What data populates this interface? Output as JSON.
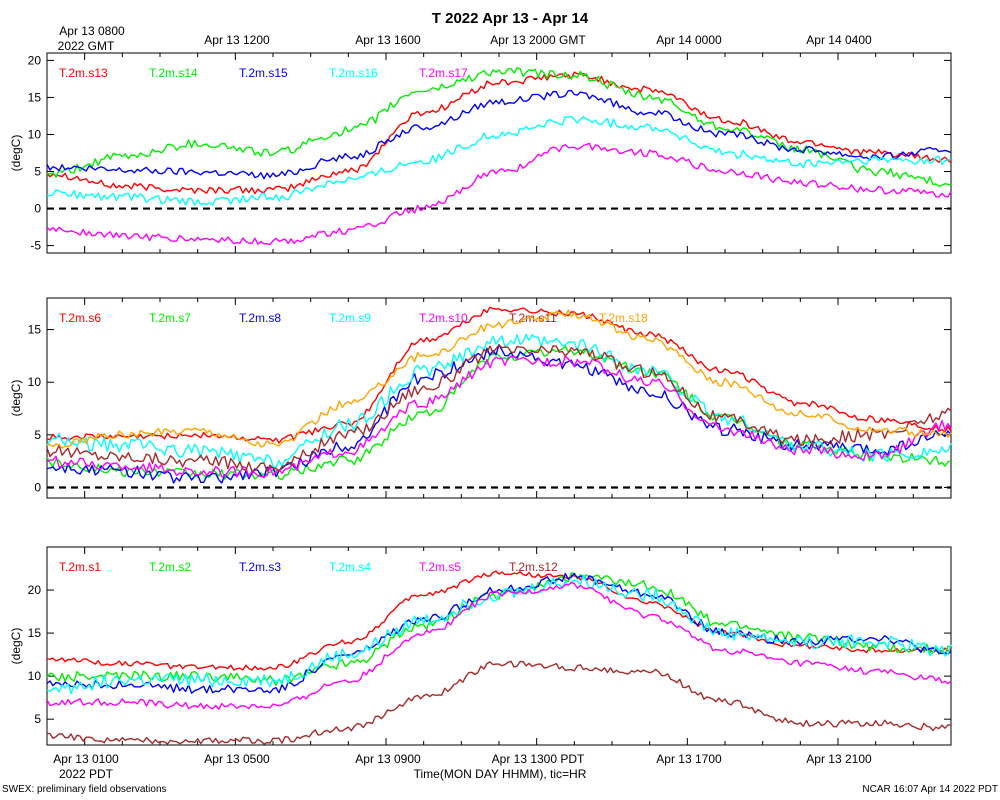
{
  "title": "T 2022 Apr 13 - Apr 14",
  "top_axis": {
    "tick_labels": [
      "Apr 13 0800",
      "Apr 13 1200",
      "Apr 13 1600",
      "Apr 13 2000 GMT",
      "Apr 14 0000",
      "Apr 14 0400"
    ],
    "sub_label": "2022 GMT"
  },
  "bottom_axis": {
    "tick_labels": [
      "Apr 13 0100",
      "Apr 13 0500",
      "Apr 13 0900",
      "Apr 13 1300 PDT",
      "Apr 13 1700",
      "Apr 13 2100"
    ],
    "sub_label": "2022 PDT",
    "xlabel": "Time(MON DAY HHMM), tic=HR"
  },
  "footer": {
    "left": "SWEX: preliminary field observations",
    "right": "NCAR 16:07 Apr 14 2022 PDT"
  },
  "chart_data": [
    {
      "type": "line",
      "ylabel": "(degC)",
      "ylim": [
        -6,
        21
      ],
      "yticks": [
        -5,
        0,
        5,
        10,
        15,
        20
      ],
      "zero_line": true,
      "x_hours": [
        0,
        2,
        4,
        6,
        8,
        10,
        12,
        14,
        16,
        18,
        20,
        22,
        24
      ],
      "series": [
        {
          "name": "T.2m.s13",
          "color": "#ff0000",
          "values": [
            4.8,
            3.0,
            2.5,
            2.5,
            5.0,
            13.0,
            17.0,
            18.0,
            16.0,
            12.0,
            9.0,
            7.5,
            6.5
          ],
          "noise": 0.5
        },
        {
          "name": "T.2m.s14",
          "color": "#00ee00",
          "values": [
            4.5,
            7.0,
            8.8,
            7.5,
            10.5,
            16.0,
            18.5,
            18.0,
            15.0,
            11.0,
            8.0,
            5.0,
            3.5
          ],
          "noise": 0.6
        },
        {
          "name": "T.2m.s15",
          "color": "#0000ff",
          "values": [
            5.5,
            5.2,
            5.0,
            4.5,
            7.0,
            11.0,
            14.5,
            15.5,
            13.0,
            10.0,
            8.0,
            7.0,
            8.0
          ],
          "noise": 0.5
        },
        {
          "name": "T.2m.s16",
          "color": "#00ffff",
          "values": [
            2.0,
            1.5,
            0.8,
            1.5,
            4.0,
            6.5,
            10.0,
            12.0,
            11.0,
            7.5,
            6.0,
            6.5,
            6.5
          ],
          "noise": 0.6
        },
        {
          "name": "T.2m.s17",
          "color": "#ff00ff",
          "values": [
            -2.8,
            -3.7,
            -4.2,
            -4.5,
            -3.0,
            0.0,
            5.0,
            8.5,
            7.5,
            5.0,
            3.5,
            2.5,
            2.0
          ],
          "noise": 0.5
        }
      ]
    },
    {
      "type": "line",
      "ylabel": "(degC)",
      "ylim": [
        -1,
        18
      ],
      "yticks": [
        0,
        5,
        10,
        15
      ],
      "zero_line": true,
      "x_hours": [
        0,
        2,
        4,
        6,
        8,
        10,
        12,
        14,
        16,
        18,
        20,
        22,
        24
      ],
      "series": [
        {
          "name": "T.2m.s6",
          "color": "#ff0000",
          "values": [
            4.8,
            4.8,
            5.0,
            4.5,
            6.0,
            14.0,
            17.0,
            16.5,
            14.5,
            11.0,
            8.0,
            6.5,
            5.5
          ],
          "noise": 0.3
        },
        {
          "name": "T.2m.s7",
          "color": "#00ee00",
          "values": [
            2.5,
            1.5,
            1.3,
            1.2,
            2.5,
            7.0,
            12.5,
            13.0,
            11.0,
            6.5,
            4.0,
            3.0,
            2.5
          ],
          "noise": 0.5
        },
        {
          "name": "T.2m.s8",
          "color": "#0000ff",
          "values": [
            2.0,
            1.5,
            0.8,
            1.5,
            4.0,
            10.5,
            13.0,
            11.5,
            9.0,
            5.5,
            4.0,
            3.5,
            5.0
          ],
          "noise": 0.6
        },
        {
          "name": "T.2m.s9",
          "color": "#00ffff",
          "values": [
            4.5,
            4.0,
            3.5,
            2.5,
            6.0,
            11.0,
            14.0,
            13.5,
            11.0,
            6.5,
            4.0,
            3.0,
            3.5
          ],
          "noise": 0.7
        },
        {
          "name": "T.2m.s10",
          "color": "#ff00ff",
          "values": [
            2.5,
            2.0,
            1.5,
            1.5,
            3.5,
            8.0,
            12.0,
            12.0,
            10.0,
            5.5,
            3.5,
            3.0,
            6.0
          ],
          "noise": 0.5
        },
        {
          "name": "T.2m.s11",
          "color": "#a52a2a",
          "values": [
            3.5,
            3.0,
            2.5,
            2.0,
            5.0,
            9.5,
            13.0,
            13.0,
            11.0,
            6.5,
            4.5,
            5.0,
            7.0
          ],
          "noise": 0.6
        },
        {
          "name": "T.2m.s18",
          "color": "#ffa500",
          "values": [
            4.0,
            5.0,
            5.5,
            4.0,
            8.0,
            12.5,
            15.5,
            16.5,
            14.0,
            10.0,
            7.0,
            5.5,
            5.0
          ],
          "noise": 0.4
        }
      ]
    },
    {
      "type": "line",
      "ylabel": "(degC)",
      "ylim": [
        2,
        25
      ],
      "yticks": [
        5,
        10,
        15,
        20
      ],
      "zero_line": false,
      "x_hours": [
        0,
        2,
        4,
        6,
        8,
        10,
        12,
        14,
        16,
        18,
        20,
        22,
        24
      ],
      "series": [
        {
          "name": "T.2m.s1",
          "color": "#ff0000",
          "values": [
            12.0,
            11.5,
            11.0,
            11.0,
            14.0,
            19.5,
            22.0,
            21.5,
            18.5,
            15.0,
            13.5,
            13.0,
            13.0
          ],
          "noise": 0.3
        },
        {
          "name": "T.2m.s2",
          "color": "#00ee00",
          "values": [
            10.0,
            10.0,
            10.0,
            9.5,
            11.5,
            16.0,
            19.5,
            21.5,
            20.5,
            16.0,
            14.5,
            13.5,
            13.0
          ],
          "noise": 0.6
        },
        {
          "name": "T.2m.s3",
          "color": "#0000ff",
          "values": [
            9.0,
            9.0,
            8.5,
            8.5,
            12.5,
            16.5,
            20.0,
            21.5,
            19.5,
            15.0,
            14.0,
            14.5,
            12.5
          ],
          "noise": 0.5
        },
        {
          "name": "T.2m.s4",
          "color": "#00ffff",
          "values": [
            8.5,
            9.5,
            9.5,
            9.5,
            12.5,
            16.5,
            19.5,
            21.0,
            19.5,
            15.0,
            14.0,
            14.0,
            13.0
          ],
          "noise": 0.8
        },
        {
          "name": "T.2m.s5",
          "color": "#ff00ff",
          "values": [
            7.0,
            7.0,
            6.5,
            6.5,
            9.5,
            15.0,
            19.5,
            20.5,
            17.0,
            13.0,
            11.5,
            10.5,
            9.5
          ],
          "noise": 0.4
        },
        {
          "name": "T.2m.s12",
          "color": "#a52a2a",
          "values": [
            3.0,
            2.5,
            2.5,
            2.5,
            4.0,
            7.5,
            11.5,
            11.0,
            10.5,
            7.0,
            4.5,
            4.5,
            4.0
          ],
          "noise": 0.4
        }
      ]
    }
  ]
}
